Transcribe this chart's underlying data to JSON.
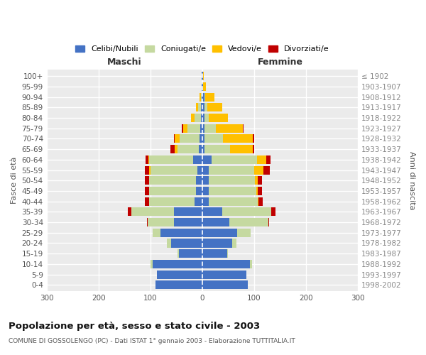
{
  "age_groups": [
    "0-4",
    "5-9",
    "10-14",
    "15-19",
    "20-24",
    "25-29",
    "30-34",
    "35-39",
    "40-44",
    "45-49",
    "50-54",
    "55-59",
    "60-64",
    "65-69",
    "70-74",
    "75-79",
    "80-84",
    "85-89",
    "90-94",
    "95-99",
    "100+"
  ],
  "birth_years": [
    "1998-2002",
    "1993-1997",
    "1988-1992",
    "1983-1987",
    "1978-1982",
    "1973-1977",
    "1968-1972",
    "1963-1967",
    "1958-1962",
    "1953-1957",
    "1948-1952",
    "1943-1947",
    "1938-1942",
    "1933-1937",
    "1928-1932",
    "1923-1927",
    "1918-1922",
    "1913-1917",
    "1908-1912",
    "1903-1907",
    "≤ 1902"
  ],
  "male_celibi": [
    90,
    88,
    95,
    45,
    60,
    80,
    55,
    55,
    15,
    12,
    12,
    10,
    17,
    6,
    5,
    4,
    3,
    3,
    1,
    1,
    1
  ],
  "male_coniugati": [
    0,
    0,
    4,
    2,
    8,
    15,
    50,
    82,
    88,
    90,
    90,
    90,
    85,
    42,
    38,
    25,
    12,
    5,
    2,
    0,
    0
  ],
  "male_vedovi": [
    0,
    0,
    0,
    0,
    0,
    0,
    0,
    0,
    0,
    1,
    1,
    2,
    2,
    5,
    10,
    8,
    6,
    4,
    2,
    0,
    0
  ],
  "male_divorziati": [
    0,
    0,
    0,
    0,
    0,
    1,
    2,
    7,
    8,
    8,
    8,
    8,
    5,
    8,
    2,
    2,
    1,
    0,
    0,
    0,
    0
  ],
  "female_celibi": [
    88,
    85,
    92,
    48,
    58,
    68,
    52,
    38,
    12,
    12,
    12,
    12,
    18,
    5,
    5,
    4,
    4,
    5,
    4,
    2,
    1
  ],
  "female_coniugati": [
    0,
    0,
    4,
    2,
    8,
    25,
    75,
    95,
    95,
    92,
    90,
    88,
    88,
    48,
    35,
    22,
    8,
    5,
    2,
    0,
    0
  ],
  "female_vedovi": [
    0,
    0,
    0,
    0,
    0,
    0,
    0,
    0,
    2,
    3,
    5,
    18,
    18,
    45,
    58,
    52,
    38,
    28,
    18,
    5,
    2
  ],
  "female_divorziati": [
    0,
    0,
    0,
    0,
    0,
    1,
    2,
    8,
    8,
    8,
    8,
    12,
    8,
    2,
    2,
    2,
    0,
    0,
    0,
    0,
    0
  ],
  "color_celibi": "#4472c4",
  "color_coniugati": "#c5d9a0",
  "color_vedovi": "#ffc000",
  "color_divorziati": "#c00000",
  "title": "Popolazione per età, sesso e stato civile - 2003",
  "subtitle": "COMUNE DI GOSSOLENGO (PC) - Dati ISTAT 1° gennaio 2003 - Elaborazione TUTTITALIA.IT",
  "xlabel_left": "Maschi",
  "xlabel_right": "Femmine",
  "ylabel_left": "Fasce di età",
  "ylabel_right": "Anni di nascita",
  "xlim": 300,
  "bg_color": "#ffffff",
  "plot_bg": "#ebebeb",
  "grid_color": "#ffffff"
}
